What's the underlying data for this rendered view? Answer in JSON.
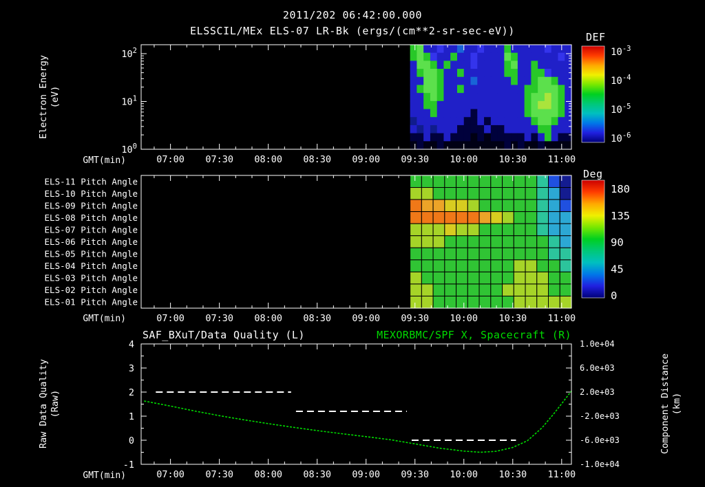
{
  "window": {
    "background": "#000000",
    "foreground": "#ffffff"
  },
  "colors": {
    "accent_green": "#00dc00",
    "axis": "#ffffff",
    "grid": "#000000"
  },
  "header": {
    "datetime": "2011/202 06:42:00.000",
    "title": "ELSSCIL/MEx ELS-07 LR-Bk  (ergs/(cm**2-sr-sec-eV))"
  },
  "time_axis": {
    "label": "GMT(min)",
    "start": "06:42",
    "end": "11:06",
    "ticks": [
      "07:00",
      "07:30",
      "08:00",
      "08:30",
      "09:00",
      "09:30",
      "10:00",
      "10:30",
      "11:00"
    ]
  },
  "chart_data": [
    {
      "type": "heatmap",
      "id": "electron-energy-spectrogram",
      "ylabel": "Electron Energy",
      "ylabel_units": "(eV)",
      "yscale": "log",
      "ylim": [
        1,
        150
      ],
      "yticks": [
        {
          "base": "10",
          "exp": "2"
        },
        {
          "base": "10",
          "exp": "1"
        },
        {
          "base": "10",
          "exp": "0"
        }
      ],
      "colorbar": {
        "label": "DEF",
        "ticks": [
          {
            "base": "10",
            "exp": "-3"
          },
          {
            "base": "10",
            "exp": "-4"
          },
          {
            "base": "10",
            "exp": "-5"
          },
          {
            "base": "10",
            "exp": "-6"
          }
        ],
        "gradient": [
          "#cc0000",
          "#ff3c00",
          "#ffa800",
          "#f0f000",
          "#78e800",
          "#00d020",
          "#00c878",
          "#00c0c0",
          "#0078e8",
          "#2020e0",
          "#000078"
        ]
      },
      "data_window": {
        "start": "09:27",
        "end": "11:06"
      },
      "no_data_before": "09:27",
      "palette": {
        "K": "#000014",
        "d": "#00013c",
        "n": "#101c8c",
        "b": "#2020c8",
        "B": "#3434ec",
        "v": "#1864d8",
        "g": "#28c828",
        "G": "#5ce04c",
        "y": "#aae43c"
      },
      "cells": [
        "gGbbBbbvbbBbbbgbbbbbBbbb",
        "gGgBbbgbbBbbbbGgbbbbbbBb",
        "bGGgbgbbbBbbbbgGbbgbbbbb",
        "bgGGgbbgbbbbbbggbbggBbbb",
        "bbGGgbbbbvbbbbbgbbgGGgbb",
        "bgGGgbbgbbbbbbbbbggGGGgb",
        "bbgGgbbbbbbbbbbbbgGGyGgb",
        "bbggbbbbbbbbbbbbbgGyyGgb",
        "bbbgbbbbbdbbbbbbbgGGGGgb",
        "nbbbbbbbddbdbbbbbbgGGgbb",
        "bnbnbbbddddbddbbbbbggbbb",
        "ddbddbdddKdKdddddbdbgbdd",
        "KdKKdKKKKKKKKKdKdKKdKKKK"
      ]
    },
    {
      "type": "heatmap",
      "id": "pitch-angle-panel",
      "row_labels": [
        "ELS-11 Pitch Angle",
        "ELS-10 Pitch Angle",
        "ELS-09 Pitch Angle",
        "ELS-08 Pitch Angle",
        "ELS-07 Pitch Angle",
        "ELS-06 Pitch Angle",
        "ELS-05 Pitch Angle",
        "ELS-04 Pitch Angle",
        "ELS-03 Pitch Angle",
        "ELS-02 Pitch Angle",
        "ELS-01 Pitch Angle"
      ],
      "colorbar": {
        "label": "Deg",
        "ticks": [
          "180",
          "135",
          "90",
          "45",
          "0"
        ],
        "gradient": [
          "#cc0000",
          "#ff3c00",
          "#ffa800",
          "#f0f000",
          "#78e800",
          "#00d020",
          "#00c878",
          "#00c0c0",
          "#0078e8",
          "#2020e0",
          "#000078"
        ]
      },
      "data_window": {
        "start": "09:27",
        "end": "11:06"
      },
      "no_data_before": "09:27",
      "palette": {
        "O": "#f07818",
        "o": "#eca428",
        "Y": "#d8cc20",
        "y": "#a6d428",
        "G": "#30c434",
        "t": "#2cc49c",
        "c": "#2ca8d4",
        "b": "#2050e0",
        "d": "#141c90"
      },
      "cells": [
        "GGGGGGGGGGGtbd",
        "yyGGGGGGGGGtcd",
        "OooYYyGGGGGtcb",
        "OOOOOOoYyGGtcc",
        "yyyYyyGGGGGtcc",
        "yyyGGGGGGGGGtc",
        "GGGGGGGGGGGGtt",
        "GGGGGGGGGyyGGt",
        "yGGGGGGGGyyyGG",
        "yyGGGGGGyyyyGG",
        "yyGGGGGGGyyyyy"
      ]
    },
    {
      "type": "line",
      "id": "quality-and-distance",
      "title_left": "SAF_BXuT/Data Quality (L)",
      "title_right": "MEXORBMC/SPF X, Spacecraft (R)",
      "ylabel_left": "Raw Data Quality",
      "ylabel_left_units": "(Raw)",
      "ylabel_right": "Component Distance",
      "ylabel_right_units": "(km)",
      "ylim_left": [
        -1,
        4
      ],
      "yticks_left": [
        "4",
        "3",
        "2",
        "1",
        "0",
        "-1"
      ],
      "yticks_right": [
        "1.0e+04",
        "6.0e+03",
        "2.0e+03",
        "-2.0e+03",
        "-6.0e+03",
        "-1.0e+04"
      ],
      "series": [
        {
          "name": "Raw Data Quality",
          "color": "#ffffff",
          "style": "dashed",
          "segments": [
            {
              "value": 2,
              "start": "06:51",
              "end": "08:14"
            },
            {
              "value": 1.2,
              "start": "08:17",
              "end": "09:25"
            },
            {
              "value": 0,
              "start": "09:28",
              "end": "10:32"
            }
          ]
        },
        {
          "name": "Spacecraft X component distance",
          "color": "#00dc00",
          "style": "dotted",
          "points": [
            [
              6.73,
              1.63
            ],
            [
              7.0,
              1.42
            ],
            [
              7.25,
              1.21
            ],
            [
              7.5,
              1.02
            ],
            [
              7.75,
              0.85
            ],
            [
              8.0,
              0.69
            ],
            [
              8.25,
              0.54
            ],
            [
              8.5,
              0.4
            ],
            [
              8.75,
              0.27
            ],
            [
              9.0,
              0.15
            ],
            [
              9.25,
              0.02
            ],
            [
              9.5,
              -0.15
            ],
            [
              9.75,
              -0.33
            ],
            [
              10.0,
              -0.45
            ],
            [
              10.17,
              -0.5
            ],
            [
              10.33,
              -0.46
            ],
            [
              10.5,
              -0.3
            ],
            [
              10.65,
              -0.02
            ],
            [
              10.8,
              0.52
            ],
            [
              10.92,
              1.1
            ],
            [
              11.02,
              1.62
            ],
            [
              11.1,
              2.05
            ]
          ]
        }
      ]
    }
  ]
}
